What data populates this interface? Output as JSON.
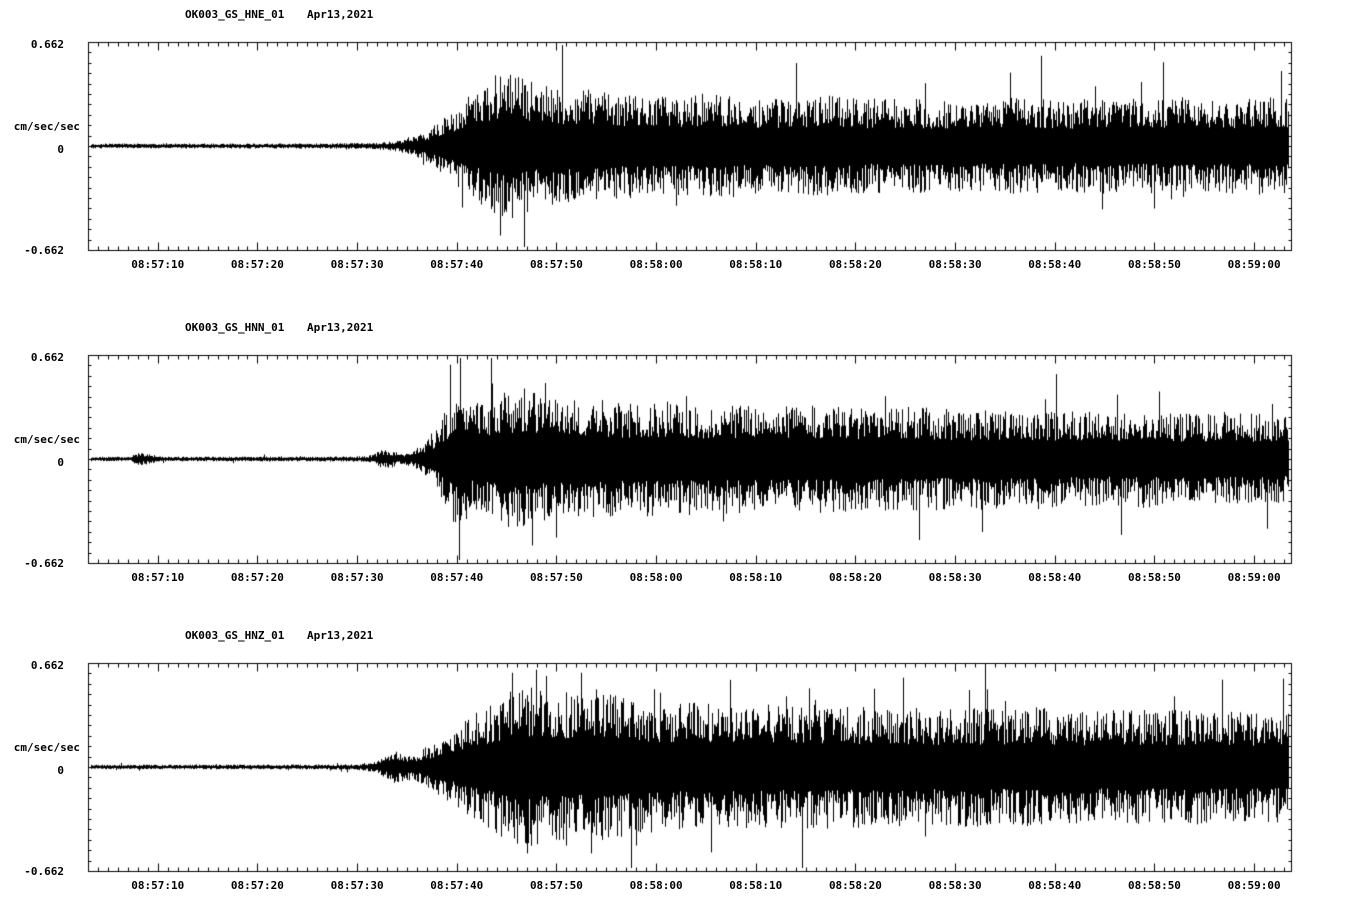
{
  "page": {
    "background": "#ffffff",
    "trace_color": "#000000",
    "description_note": "Three stacked seismogram strip charts"
  },
  "chart_data": [
    {
      "type": "line",
      "subtype": "seismogram",
      "station_channel": "OK003_GS_HNE_01",
      "date_label": "Apr13,2021",
      "ylabel": "cm/sec/sec",
      "ylim": [
        -0.662,
        0.662
      ],
      "ytick_labels": [
        "0.662",
        "0",
        "-0.662"
      ],
      "xtick_labels": [
        "08:57:10",
        "08:57:20",
        "08:57:30",
        "08:57:40",
        "08:57:50",
        "08:58:00",
        "08:58:10",
        "08:58:20",
        "08:58:30",
        "08:58:40",
        "08:58:50",
        "08:59:00"
      ],
      "time_window": {
        "start": "08:57:03",
        "end": "08:59:04",
        "duration_sec": 120.7,
        "first_label_offset_sec": 7
      },
      "x_major_tick_sec": 10,
      "x_minor_tick_sec": 1,
      "grid": false,
      "legend": "none",
      "trace_color": "#000000",
      "seed": 101,
      "envelope_cm_s2": [
        [
          0,
          0.013
        ],
        [
          24,
          0.014
        ],
        [
          29,
          0.018
        ],
        [
          31,
          0.03
        ],
        [
          33,
          0.06
        ],
        [
          34.5,
          0.1
        ],
        [
          36,
          0.17
        ],
        [
          37.5,
          0.24
        ],
        [
          39,
          0.3
        ],
        [
          40.5,
          0.36
        ],
        [
          42,
          0.4
        ],
        [
          43.5,
          0.36
        ],
        [
          45,
          0.33
        ],
        [
          47,
          0.31
        ],
        [
          50,
          0.3
        ],
        [
          54,
          0.28
        ],
        [
          58,
          0.26
        ],
        [
          62,
          0.28
        ],
        [
          66,
          0.26
        ],
        [
          70,
          0.25
        ],
        [
          74,
          0.27
        ],
        [
          78,
          0.25
        ],
        [
          82,
          0.26
        ],
        [
          86,
          0.24
        ],
        [
          90,
          0.25
        ],
        [
          94,
          0.26
        ],
        [
          98,
          0.24
        ],
        [
          102,
          0.26
        ],
        [
          106,
          0.25
        ],
        [
          110,
          0.26
        ],
        [
          114,
          0.25
        ],
        [
          118,
          0.26
        ],
        [
          121,
          0.25
        ]
      ],
      "notable_spikes": [
        [
          40.8,
          0.45,
          1
        ],
        [
          41.3,
          0.57,
          -1
        ],
        [
          44,
          0.42,
          -1
        ],
        [
          59,
          0.38,
          -1
        ],
        [
          84,
          0.4,
          1
        ],
        [
          101,
          0.38,
          1
        ]
      ]
    },
    {
      "type": "line",
      "subtype": "seismogram",
      "station_channel": "OK003_GS_HNN_01",
      "date_label": "Apr13,2021",
      "ylabel": "cm/sec/sec",
      "ylim": [
        -0.662,
        0.662
      ],
      "ytick_labels": [
        "0.662",
        "0",
        "-0.662"
      ],
      "xtick_labels": [
        "08:57:10",
        "08:57:20",
        "08:57:30",
        "08:57:40",
        "08:57:50",
        "08:58:00",
        "08:58:10",
        "08:58:20",
        "08:58:30",
        "08:58:40",
        "08:58:50",
        "08:59:00"
      ],
      "time_window": {
        "start": "08:57:03",
        "end": "08:59:04",
        "duration_sec": 120.7,
        "first_label_offset_sec": 7
      },
      "x_major_tick_sec": 10,
      "x_minor_tick_sec": 1,
      "grid": false,
      "legend": "none",
      "trace_color": "#000000",
      "seed": 202,
      "envelope_cm_s2": [
        [
          0,
          0.012
        ],
        [
          4.2,
          0.012
        ],
        [
          4.8,
          0.032
        ],
        [
          6.2,
          0.03
        ],
        [
          7,
          0.013
        ],
        [
          24,
          0.013
        ],
        [
          28,
          0.015
        ],
        [
          29.3,
          0.045
        ],
        [
          30.2,
          0.055
        ],
        [
          31.2,
          0.028
        ],
        [
          32.5,
          0.04
        ],
        [
          33.5,
          0.08
        ],
        [
          35,
          0.17
        ],
        [
          36.2,
          0.3
        ],
        [
          37.2,
          0.38
        ],
        [
          38.5,
          0.3
        ],
        [
          40,
          0.32
        ],
        [
          42,
          0.36
        ],
        [
          44,
          0.38
        ],
        [
          46,
          0.33
        ],
        [
          48,
          0.31
        ],
        [
          51,
          0.32
        ],
        [
          54,
          0.3
        ],
        [
          58,
          0.31
        ],
        [
          62,
          0.29
        ],
        [
          66,
          0.3
        ],
        [
          70,
          0.28
        ],
        [
          74,
          0.29
        ],
        [
          78,
          0.27
        ],
        [
          82,
          0.28
        ],
        [
          86,
          0.27
        ],
        [
          90,
          0.26
        ],
        [
          94,
          0.27
        ],
        [
          98,
          0.26
        ],
        [
          102,
          0.25
        ],
        [
          106,
          0.26
        ],
        [
          110,
          0.24
        ],
        [
          114,
          0.25
        ],
        [
          118,
          0.24
        ],
        [
          121,
          0.24
        ]
      ],
      "notable_spikes": [
        [
          36.3,
          0.6,
          1
        ],
        [
          40.5,
          0.48,
          1
        ],
        [
          44.5,
          0.55,
          -1
        ],
        [
          47,
          0.5,
          -1
        ],
        [
          60,
          0.4,
          1
        ],
        [
          80,
          0.4,
          1
        ],
        [
          96,
          0.38,
          1
        ]
      ]
    },
    {
      "type": "line",
      "subtype": "seismogram",
      "station_channel": "OK003_GS_HNZ_01",
      "date_label": "Apr13,2021",
      "ylabel": "cm/sec/sec",
      "ylim": [
        -0.662,
        0.662
      ],
      "ytick_labels": [
        "0.662",
        "0",
        "-0.662"
      ],
      "xtick_labels": [
        "08:57:10",
        "08:57:20",
        "08:57:30",
        "08:57:40",
        "08:57:50",
        "08:58:00",
        "08:58:10",
        "08:58:20",
        "08:58:30",
        "08:58:40",
        "08:58:50",
        "08:59:00"
      ],
      "time_window": {
        "start": "08:57:03",
        "end": "08:59:04",
        "duration_sec": 120.7,
        "first_label_offset_sec": 7
      },
      "x_major_tick_sec": 10,
      "x_minor_tick_sec": 1,
      "grid": false,
      "legend": "none",
      "trace_color": "#000000",
      "seed": 303,
      "envelope_cm_s2": [
        [
          0,
          0.012
        ],
        [
          24,
          0.013
        ],
        [
          27,
          0.016
        ],
        [
          29,
          0.03
        ],
        [
          30,
          0.07
        ],
        [
          31,
          0.09
        ],
        [
          32,
          0.07
        ],
        [
          33,
          0.08
        ],
        [
          34,
          0.11
        ],
        [
          35.5,
          0.16
        ],
        [
          37,
          0.22
        ],
        [
          38.5,
          0.28
        ],
        [
          40,
          0.32
        ],
        [
          42,
          0.4
        ],
        [
          44,
          0.44
        ],
        [
          45.5,
          0.4
        ],
        [
          47,
          0.42
        ],
        [
          49,
          0.38
        ],
        [
          51,
          0.42
        ],
        [
          53,
          0.38
        ],
        [
          55,
          0.36
        ],
        [
          58,
          0.34
        ],
        [
          61,
          0.35
        ],
        [
          64,
          0.33
        ],
        [
          67,
          0.34
        ],
        [
          70,
          0.32
        ],
        [
          73,
          0.34
        ],
        [
          76,
          0.32
        ],
        [
          80,
          0.33
        ],
        [
          84,
          0.31
        ],
        [
          88,
          0.32
        ],
        [
          92,
          0.31
        ],
        [
          96,
          0.32
        ],
        [
          100,
          0.3
        ],
        [
          104,
          0.31
        ],
        [
          108,
          0.3
        ],
        [
          112,
          0.31
        ],
        [
          116,
          0.3
        ],
        [
          121,
          0.3
        ]
      ],
      "notable_spikes": [
        [
          42.5,
          0.6,
          1
        ],
        [
          44,
          0.55,
          -1
        ],
        [
          46,
          0.58,
          1
        ],
        [
          48,
          0.5,
          -1
        ],
        [
          49.5,
          0.6,
          1
        ],
        [
          50.5,
          0.55,
          -1
        ],
        [
          55,
          0.5,
          -1
        ],
        [
          70,
          0.45,
          1
        ],
        [
          92,
          0.42,
          1
        ],
        [
          109,
          0.45,
          1
        ]
      ]
    }
  ]
}
